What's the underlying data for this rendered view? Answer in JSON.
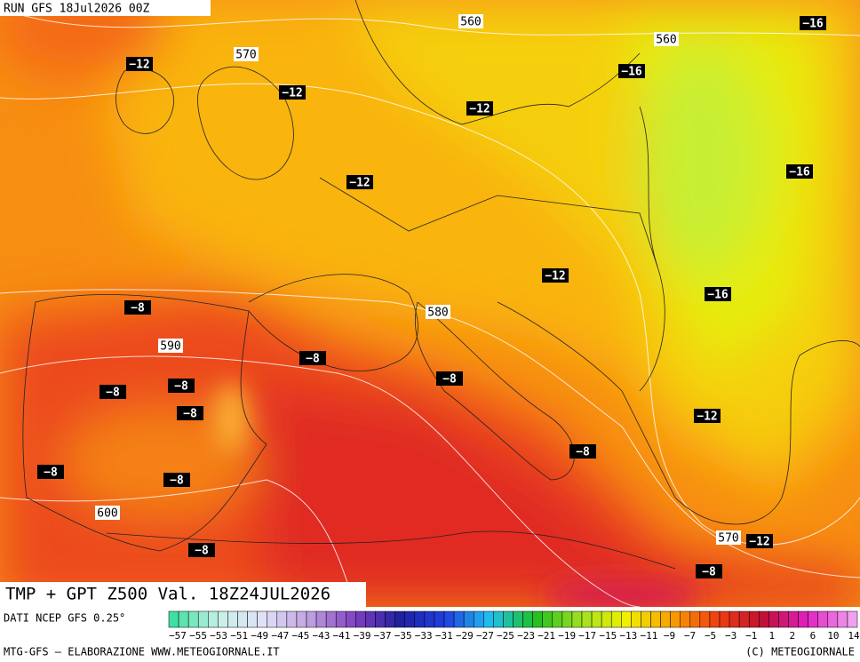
{
  "header": {
    "run": "RUN GFS 18Jul2026 00Z"
  },
  "title": "TMP + GPT Z500 Val. 18Z24JUL2026",
  "source": "DATI NCEP GFS 0.25°",
  "temperature_labels": [
    "−12",
    "−12",
    "−12",
    "−12",
    "−12",
    "−12",
    "−12",
    "−16",
    "−16",
    "−16",
    "−16",
    "−8",
    "−8",
    "−8",
    "−8",
    "−8",
    "−8",
    "−8",
    "−8",
    "−8",
    "−8",
    "−8"
  ],
  "geopotential_labels": [
    "560",
    "560",
    "570",
    "580",
    "590",
    "600",
    "570"
  ],
  "colorbar": {
    "ticks": [
      "−57",
      "−55",
      "−53",
      "−51",
      "−49",
      "−47",
      "−45",
      "−43",
      "−41",
      "−39",
      "−37",
      "−35",
      "−33",
      "−31",
      "−29",
      "−27",
      "−25",
      "−23",
      "−21",
      "−19",
      "−17",
      "−15",
      "−13",
      "−11",
      "−9",
      "−7",
      "−5",
      "−3",
      "−1",
      "1",
      "2",
      "6",
      "10",
      "14"
    ]
  },
  "footer": {
    "left": "MTG-GFS — ELABORAZIONE WWW.METEOGIORNALE.IT",
    "right": "(C) METEOGIORNALE"
  }
}
